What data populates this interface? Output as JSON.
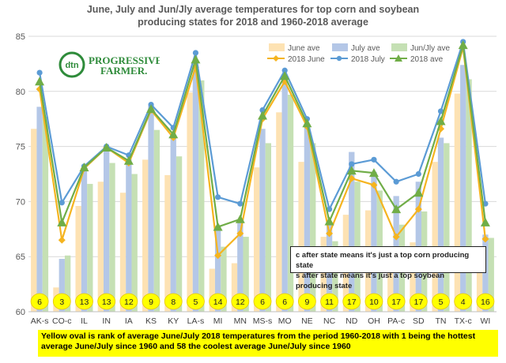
{
  "title_line1": "June, July and Jun/Jly average temperatures for top corn and soybean",
  "title_line2": "producing states for 2018 and 1960-2018 average",
  "logo": {
    "mark": "dtn",
    "name_line1": "PROGRESSIVE",
    "name_line2": "FARMER."
  },
  "note_line1": "c after state means it's just a top corn producing state",
  "note_line2": "s after state means it's just a top soybean producing state",
  "footnote": "Yellow oval is rank of average June/July 2018 temperatures from the period 1960-2018 with 1 being the hottest average June/July since 1960 and 58 the coolest average June/July since 1960",
  "chart_data": {
    "type": "bar",
    "categories": [
      "AK-s",
      "CO-c",
      "IL",
      "IN",
      "IA",
      "KS",
      "KY",
      "LA-s",
      "MI",
      "MN",
      "MS-s",
      "MO",
      "NE",
      "NC",
      "ND",
      "OH",
      "PA-c",
      "SD",
      "TN",
      "TX-c",
      "WI"
    ],
    "ylim": [
      60,
      85
    ],
    "yticks": [
      60,
      65,
      70,
      75,
      80,
      85
    ],
    "series": [
      {
        "name": "June ave",
        "type": "bar",
        "color": "#fde2b3",
        "values": [
          76.6,
          62.2,
          69.6,
          71.8,
          70.8,
          73.8,
          72.4,
          79.9,
          63.9,
          64.4,
          73.1,
          78.1,
          73.6,
          66.8,
          68.8,
          69.2,
          65.2,
          66.3,
          73.6,
          79.8,
          64.2
        ]
      },
      {
        "name": "July ave",
        "type": "bar",
        "color": "#b4c7e7",
        "values": [
          78.6,
          64.8,
          73.1,
          74.9,
          73.9,
          78.7,
          76.0,
          82.4,
          67.8,
          68.1,
          76.6,
          81.2,
          77.0,
          67.9,
          74.5,
          72.7,
          70.5,
          71.8,
          75.8,
          82.4,
          67.0
        ]
      },
      {
        "name": "Jun/Jly ave",
        "type": "bar",
        "color": "#c5e0b4",
        "values": [
          77.7,
          65.1,
          71.6,
          73.5,
          72.5,
          76.5,
          74.1,
          81.0,
          65.9,
          66.8,
          75.3,
          79.7,
          75.3,
          66.4,
          71.8,
          71.0,
          67.9,
          69.1,
          75.3,
          81.1,
          66.7
        ]
      },
      {
        "name": "2018 June",
        "type": "line",
        "color": "#f5b41f",
        "values": [
          80.2,
          66.5,
          73.0,
          74.9,
          73.5,
          78.3,
          75.8,
          82.2,
          65.1,
          67.1,
          77.5,
          80.9,
          76.8,
          67.1,
          72.1,
          71.5,
          66.8,
          69.3,
          76.6,
          84.0,
          66.6
        ]
      },
      {
        "name": "2018 July",
        "type": "line",
        "color": "#5b9bd5",
        "values": [
          81.7,
          69.9,
          73.2,
          75.0,
          74.2,
          78.8,
          76.7,
          83.5,
          70.4,
          69.8,
          78.3,
          81.9,
          77.5,
          69.3,
          73.4,
          73.8,
          71.8,
          72.5,
          78.2,
          84.5,
          69.8
        ]
      },
      {
        "name": "2018 ave",
        "type": "line",
        "color": "#70ad47",
        "values": [
          80.9,
          68.1,
          73.1,
          74.9,
          73.7,
          78.4,
          76.1,
          82.9,
          67.7,
          68.4,
          77.8,
          81.4,
          77.1,
          68.2,
          72.8,
          72.6,
          69.3,
          70.8,
          77.3,
          84.2,
          68.1
        ]
      }
    ],
    "rank_oval": [
      6,
      3,
      13,
      13,
      12,
      9,
      8,
      5,
      14,
      12,
      6,
      6,
      9,
      11,
      17,
      10,
      17,
      17,
      5,
      4,
      16
    ],
    "legend_position": "top-right",
    "grid": true
  }
}
